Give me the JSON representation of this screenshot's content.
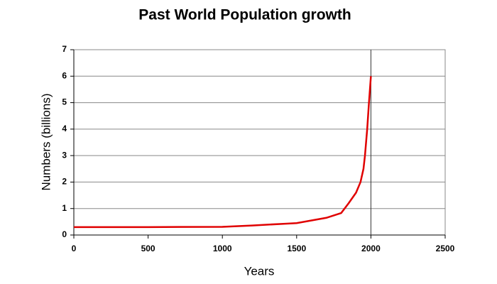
{
  "chart_data": {
    "type": "line",
    "title": "Past World Population growth",
    "x_label": "Years",
    "y_label": "Numbers (billions)",
    "x": [
      0,
      500,
      1000,
      1200,
      1400,
      1500,
      1600,
      1700,
      1800,
      1850,
      1900,
      1930,
      1950,
      1960,
      1975,
      1987,
      2000
    ],
    "series": [
      {
        "name": "World population",
        "color": "#e00000",
        "values": [
          0.3,
          0.3,
          0.31,
          0.36,
          0.42,
          0.45,
          0.55,
          0.65,
          0.83,
          1.2,
          1.6,
          2.0,
          2.5,
          3.0,
          4.0,
          5.0,
          6.0
        ]
      }
    ],
    "xlim": [
      0,
      2500
    ],
    "xticks": [
      0,
      500,
      1000,
      1500,
      2000,
      2500
    ],
    "ylim": [
      0,
      7
    ],
    "yticks": [
      0,
      1,
      2,
      3,
      4,
      5,
      6,
      7
    ],
    "grid": true,
    "vline": 2000
  }
}
